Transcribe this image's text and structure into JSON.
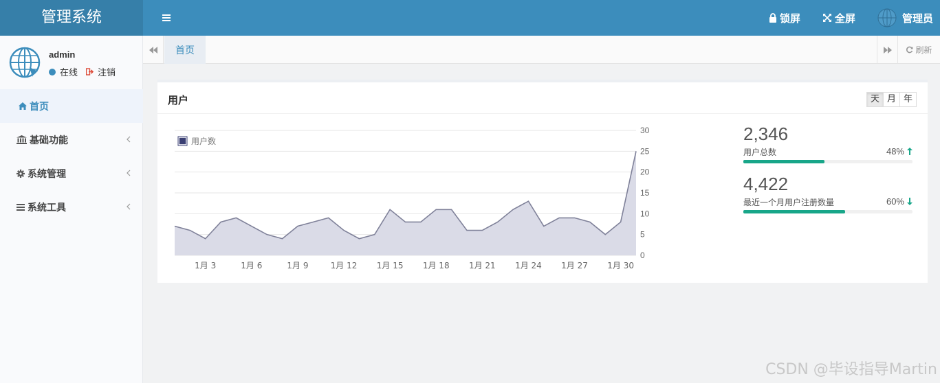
{
  "app": {
    "title": "管理系统"
  },
  "topbar": {
    "lock_label": "锁屏",
    "fullscreen_label": "全屏",
    "admin_label": "管理员"
  },
  "user": {
    "name": "admin",
    "status": "在线",
    "logout": "注销"
  },
  "sidebar": {
    "items": [
      {
        "label": "首页",
        "icon": "home-icon",
        "active": true
      },
      {
        "label": "基础功能",
        "icon": "bank-icon"
      },
      {
        "label": "系统管理",
        "icon": "gear-icon"
      },
      {
        "label": "系统工具",
        "icon": "bars-icon"
      }
    ]
  },
  "tabs": {
    "home": "首页",
    "refresh": "刷新"
  },
  "panel": {
    "title": "用户",
    "ranges": [
      "天",
      "月",
      "年"
    ],
    "active_range": "天"
  },
  "chart_data": {
    "type": "area",
    "legend": [
      "用户数"
    ],
    "x": [
      "1月 1",
      "1月 2",
      "1月 3",
      "1月 4",
      "1月 5",
      "1月 6",
      "1月 7",
      "1月 8",
      "1月 9",
      "1月 10",
      "1月 11",
      "1月 12",
      "1月 13",
      "1月 14",
      "1月 15",
      "1月 16",
      "1月 17",
      "1月 18",
      "1月 19",
      "1月 20",
      "1月 21",
      "1月 22",
      "1月 23",
      "1月 24",
      "1月 25",
      "1月 26",
      "1月 27",
      "1月 28",
      "1月 29",
      "1月 30",
      "1月 31"
    ],
    "tick_labels": [
      "1月 3",
      "1月 6",
      "1月 9",
      "1月 12",
      "1月 15",
      "1月 18",
      "1月 21",
      "1月 24",
      "1月 27",
      "1月 30"
    ],
    "series": [
      {
        "name": "用户数",
        "values": [
          7,
          6,
          4,
          8,
          9,
          7,
          5,
          4,
          7,
          8,
          9,
          6,
          4,
          5,
          11,
          8,
          8,
          11,
          11,
          6,
          6,
          8,
          11,
          13,
          7,
          9,
          9,
          8,
          5,
          8,
          25
        ]
      }
    ],
    "ylim": [
      0,
      30
    ],
    "yticks": [
      0,
      5,
      10,
      15,
      20,
      25,
      30
    ],
    "legend_position": "top-left",
    "grid": true,
    "colors": {
      "fill": "#dadbe7",
      "line": "#7f8199"
    }
  },
  "stats": [
    {
      "value": "2,346",
      "label": "用户总数",
      "percent": "48%",
      "fraction": 0.48,
      "trend": "up"
    },
    {
      "value": "4,422",
      "label": "最近一个月用户注册数量",
      "percent": "60%",
      "fraction": 0.6,
      "trend": "down"
    }
  ],
  "colors": {
    "header": "#3c8dbc",
    "brand": "#367fa9",
    "accent": "#18a689"
  },
  "watermark": "CSDN @毕设指导Martin"
}
